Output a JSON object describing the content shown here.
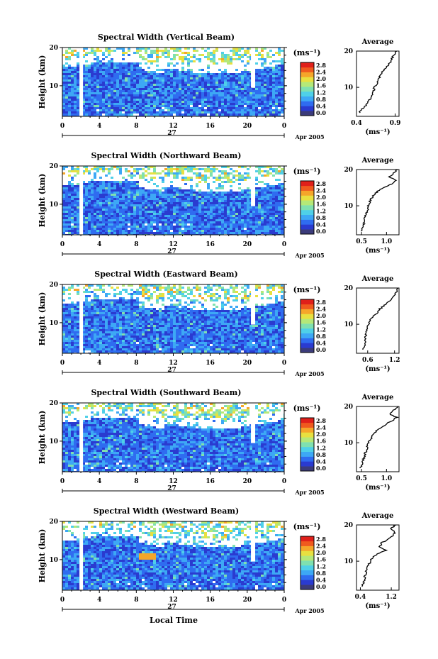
{
  "figure": {
    "date_label": "Apr 2005",
    "day_label": "27",
    "xlabel": "Local Time"
  },
  "colorbar": {
    "unit": "(ms⁻¹)",
    "ticks": [
      "0.0",
      "0.4",
      "0.8",
      "1.2",
      "1.6",
      "2.0",
      "2.4",
      "2.8"
    ],
    "colors": [
      "#3b3b7a",
      "#2a3bd0",
      "#2f6cf0",
      "#3da8f5",
      "#4fd0e8",
      "#7fe0b0",
      "#b5e878",
      "#e8e040",
      "#f5a62a",
      "#f05a1e",
      "#e0201a"
    ]
  },
  "chart_data": [
    {
      "type": "heatmap",
      "title": "Spectral Width (Vertical Beam)",
      "ylabel": "Height (km)",
      "xlim": [
        0,
        24
      ],
      "ylim": [
        2,
        20
      ],
      "xticks": [
        "0",
        "4",
        "8",
        "12",
        "16",
        "20",
        "0"
      ],
      "yticks": [
        "10",
        "20"
      ],
      "avg_title": "Average",
      "avg_xlabel": "(ms⁻¹)",
      "avg_xlim": [
        0.4,
        0.95
      ],
      "avg_xticks": [
        0.4,
        0.9
      ],
      "avg_profile": {
        "height": [
          3,
          4,
          5,
          6,
          7,
          8,
          9,
          10,
          11,
          12,
          13,
          14,
          15,
          16,
          17,
          18,
          19,
          20
        ],
        "width": [
          0.44,
          0.47,
          0.52,
          0.55,
          0.58,
          0.6,
          0.62,
          0.63,
          0.66,
          0.68,
          0.7,
          0.72,
          0.76,
          0.8,
          0.84,
          0.86,
          0.88,
          0.92
        ]
      }
    },
    {
      "type": "heatmap",
      "title": "Spectral Width (Northward Beam)",
      "ylabel": "Height (km)",
      "xlim": [
        0,
        24
      ],
      "ylim": [
        2,
        20
      ],
      "xticks": [
        "0",
        "4",
        "8",
        "12",
        "16",
        "20",
        "0"
      ],
      "yticks": [
        "10",
        "20"
      ],
      "avg_title": "Average",
      "avg_xlabel": "(ms⁻¹)",
      "avg_xlim": [
        0.4,
        1.25
      ],
      "avg_xticks": [
        0.5,
        1.0
      ],
      "avg_profile": {
        "height": [
          3,
          4,
          5,
          6,
          7,
          8,
          9,
          10,
          11,
          12,
          13,
          14,
          15,
          16,
          17,
          18,
          19,
          20
        ],
        "width": [
          0.5,
          0.52,
          0.55,
          0.56,
          0.58,
          0.6,
          0.62,
          0.63,
          0.66,
          0.7,
          0.75,
          0.82,
          0.95,
          1.1,
          1.2,
          1.05,
          1.15,
          1.22
        ]
      }
    },
    {
      "type": "heatmap",
      "title": "Spectral Width (Eastward Beam)",
      "ylabel": "Height (km)",
      "xlim": [
        0,
        24
      ],
      "ylim": [
        2,
        20
      ],
      "xticks": [
        "0",
        "4",
        "8",
        "12",
        "16",
        "20",
        "0"
      ],
      "yticks": [
        "10",
        "20"
      ],
      "avg_title": "Average",
      "avg_xlabel": "(ms⁻¹)",
      "avg_xlim": [
        0.35,
        1.3
      ],
      "avg_xticks": [
        0.6,
        1.2
      ],
      "avg_profile": {
        "height": [
          3,
          4,
          5,
          6,
          7,
          8,
          9,
          10,
          11,
          12,
          13,
          14,
          15,
          16,
          17,
          18,
          19,
          20
        ],
        "width": [
          0.5,
          0.52,
          0.54,
          0.55,
          0.56,
          0.58,
          0.6,
          0.62,
          0.66,
          0.7,
          0.8,
          0.85,
          0.95,
          1.05,
          1.15,
          1.2,
          1.25,
          1.28
        ]
      }
    },
    {
      "type": "heatmap",
      "title": "Spectral Width (Southward Beam)",
      "ylabel": "Height (km)",
      "xlim": [
        0,
        24
      ],
      "ylim": [
        2,
        20
      ],
      "xticks": [
        "0",
        "4",
        "8",
        "12",
        "16",
        "20",
        "0"
      ],
      "yticks": [
        "10",
        "20"
      ],
      "avg_title": "Average",
      "avg_xlabel": "(ms⁻¹)",
      "avg_xlim": [
        0.4,
        1.25
      ],
      "avg_xticks": [
        0.5,
        1.0
      ],
      "avg_profile": {
        "height": [
          3,
          4,
          5,
          6,
          7,
          8,
          9,
          10,
          11,
          12,
          13,
          14,
          15,
          16,
          17,
          18,
          19,
          20
        ],
        "width": [
          0.48,
          0.5,
          0.53,
          0.55,
          0.57,
          0.6,
          0.62,
          0.64,
          0.68,
          0.72,
          0.78,
          0.86,
          0.98,
          1.1,
          1.2,
          1.05,
          1.15,
          1.22
        ]
      }
    },
    {
      "type": "heatmap",
      "title": "Spectral Width (Westward Beam)",
      "ylabel": "Height (km)",
      "xlim": [
        0,
        24
      ],
      "ylim": [
        2,
        20
      ],
      "xticks": [
        "0",
        "4",
        "8",
        "12",
        "16",
        "20",
        "0"
      ],
      "yticks": [
        "10",
        "20"
      ],
      "avg_title": "Average",
      "avg_xlabel": "(ms⁻¹)",
      "avg_xlim": [
        0.3,
        1.4
      ],
      "avg_xticks": [
        0.4,
        1.2
      ],
      "avg_profile": {
        "height": [
          3,
          4,
          5,
          6,
          7,
          8,
          9,
          10,
          11,
          12,
          13,
          14,
          15,
          16,
          17,
          18,
          19,
          20
        ],
        "width": [
          0.45,
          0.48,
          0.5,
          0.52,
          0.55,
          0.58,
          0.62,
          0.66,
          0.72,
          0.85,
          1.05,
          0.9,
          0.95,
          1.1,
          1.25,
          1.3,
          1.2,
          1.32
        ]
      }
    }
  ]
}
